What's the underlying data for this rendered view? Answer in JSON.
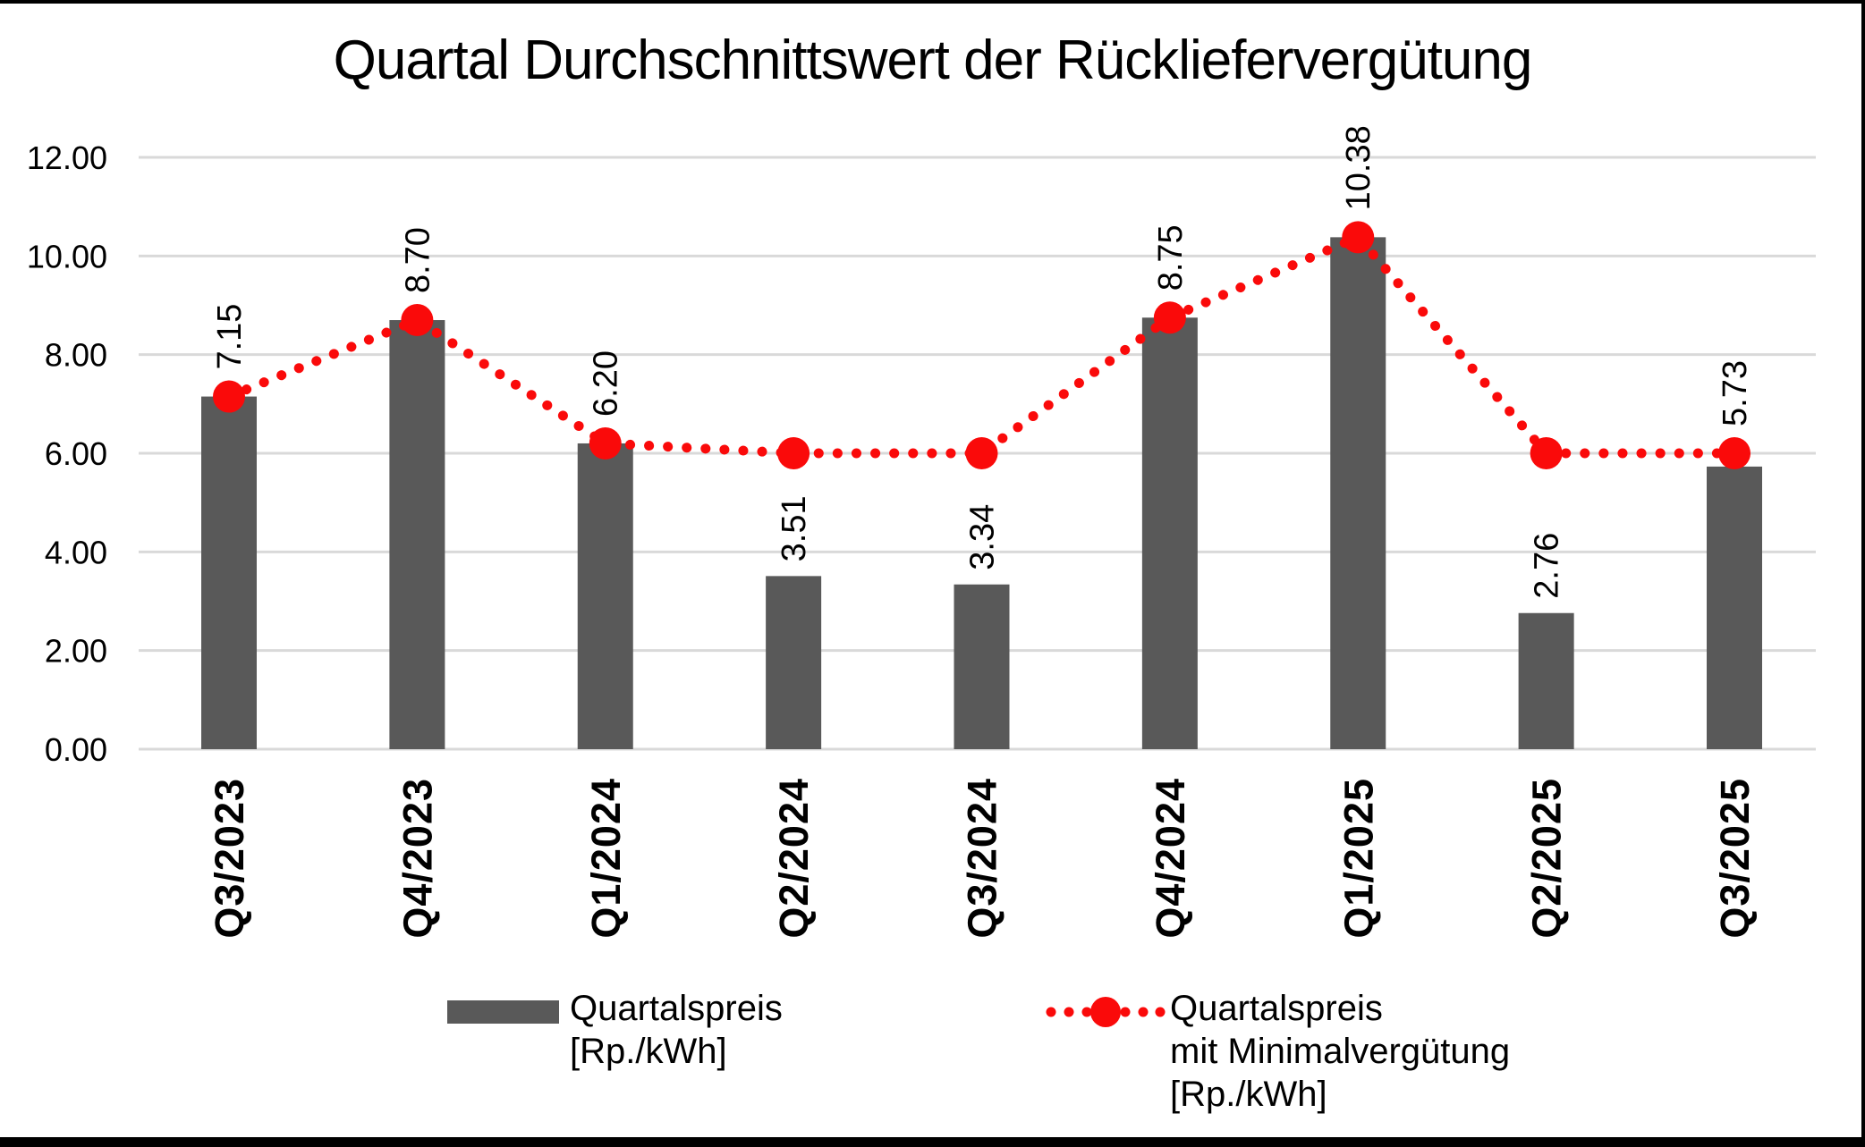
{
  "title": "Quartal Durchschnittswert der Rückliefervergütung",
  "chart_data": {
    "type": "bar+line",
    "categories": [
      "Q3/2023",
      "Q4/2023",
      "Q1/2024",
      "Q2/2024",
      "Q3/2024",
      "Q4/2024",
      "Q1/2025",
      "Q2/2025",
      "Q3/2025"
    ],
    "series": [
      {
        "name": "Quartalspreis [Rp./kWh]",
        "type": "bar",
        "color": "#595959",
        "values": [
          7.15,
          8.7,
          6.2,
          3.51,
          3.34,
          8.75,
          10.38,
          2.76,
          5.73
        ],
        "data_labels": [
          "7.15",
          "8.70",
          "6.20",
          "3.51",
          "3.34",
          "8.75",
          "10.38",
          "2.76",
          "5.73"
        ]
      },
      {
        "name": "Quartalspreis mit Minimalvergütung [Rp./kWh]",
        "type": "dotted-line",
        "marker": "circle",
        "color": "#FA0A0A",
        "values": [
          7.15,
          8.7,
          6.2,
          6.0,
          6.0,
          8.75,
          10.38,
          6.0,
          6.0
        ]
      }
    ],
    "ylim": [
      0,
      12
    ],
    "ytick_step": 2,
    "ytick_labels": [
      "0.00",
      "2.00",
      "4.00",
      "6.00",
      "8.00",
      "10.00",
      "12.00"
    ],
    "grid": true,
    "gridline_color": "#D9D9D9",
    "legend_position": "bottom"
  },
  "legend": {
    "bar": {
      "line1": "Quartalspreis",
      "line2": "[Rp./kWh]"
    },
    "line": {
      "line1": "Quartalspreis",
      "line2": "mit Minimalvergütung",
      "line3": "[Rp./kWh]"
    }
  },
  "frame": {
    "border_color": "#000000",
    "background": "#FFFFFF"
  }
}
